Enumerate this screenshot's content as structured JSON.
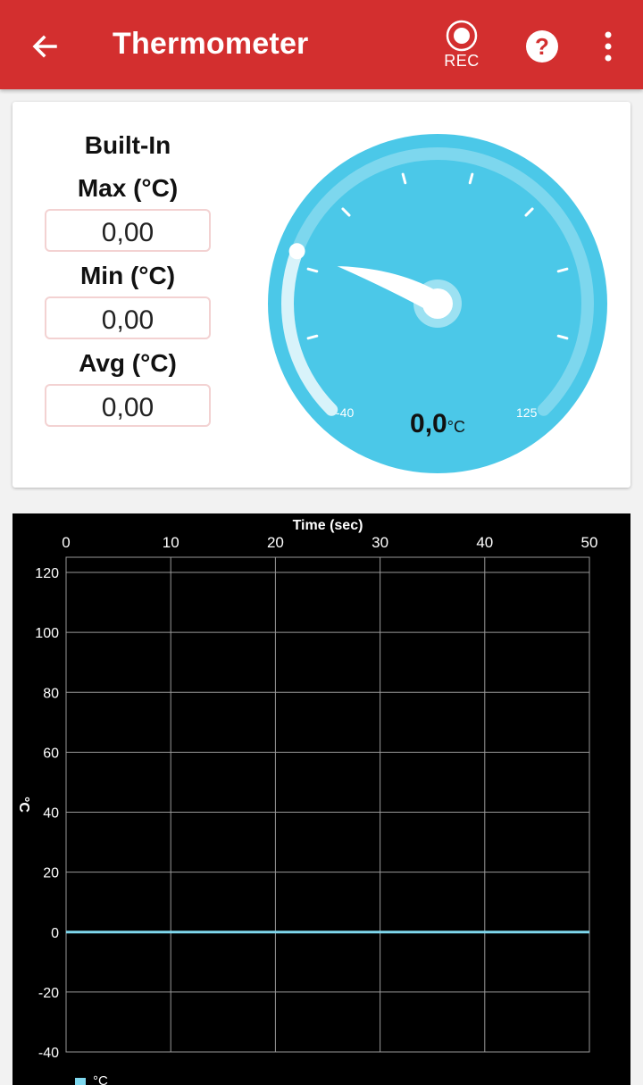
{
  "appbar": {
    "title": "Thermometer",
    "rec_label": "REC",
    "icons": [
      "arrow-back-icon",
      "record-icon",
      "help-icon",
      "more-vert-icon"
    ],
    "color": "#d32f2f"
  },
  "stats": {
    "heading": "Built-In",
    "max_label": "Max (°C)",
    "max_value": "0,00",
    "min_label": "Min (°C)",
    "min_value": "0,00",
    "avg_label": "Avg (°C)",
    "avg_value": "0,00"
  },
  "gauge": {
    "value_text": "0,0",
    "unit": "°C",
    "min_label": "-40",
    "max_label": "125",
    "min": -40,
    "max": 125,
    "value": 0.0,
    "color": "#4bc8e8"
  },
  "chart_data": {
    "type": "line",
    "title": "",
    "xlabel": "Time (sec)",
    "ylabel": "°C",
    "x_ticks": [
      "0",
      "10",
      "20",
      "30",
      "40",
      "50"
    ],
    "y_ticks": [
      "120",
      "100",
      "80",
      "60",
      "40",
      "20",
      "0",
      "-20",
      "-40"
    ],
    "xlim": [
      0,
      50
    ],
    "ylim": [
      -40,
      125
    ],
    "grid": true,
    "legend": "bottom-left",
    "series": [
      {
        "name": "°C",
        "x": [
          0,
          50
        ],
        "values": [
          0,
          0
        ],
        "color": "#7fd8ee"
      }
    ]
  }
}
